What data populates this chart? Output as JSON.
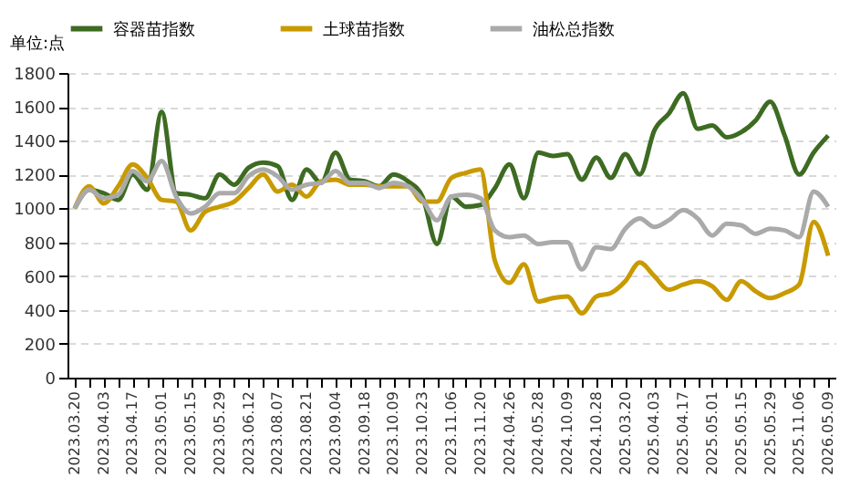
{
  "chart_data": {
    "type": "line",
    "ylabel": "单位:点",
    "categories": [
      "2023.03.20",
      null,
      "2023.04.03",
      null,
      "2023.04.17",
      null,
      "2023.05.01",
      null,
      "2023.05.15",
      null,
      "2023.05.29",
      null,
      "2023.06.12",
      null,
      "2023.08.07",
      null,
      "2023.08.21",
      null,
      "2023.09.04",
      null,
      "2023.09.18",
      null,
      "2023.10.09",
      null,
      "2023.10.23",
      null,
      "2023.11.06",
      null,
      "2023.11.20",
      null,
      "2024.04.26",
      null,
      "2024.05.28",
      null,
      "2024.10.09",
      null,
      "2024.10.28",
      null,
      "2025.03.20",
      null,
      "2025.04.03",
      null,
      "2025.04.17",
      null,
      "2025.05.01",
      null,
      "2025.05.15",
      null,
      "2025.05.29",
      null,
      "2025.11.06",
      null,
      "2026.05.09"
    ],
    "series": [
      {
        "name": "容器苗指数",
        "color": "#3d6b22",
        "values": [
          1000,
          1110,
          1090,
          1050,
          1200,
          1110,
          1570,
          1090,
          1080,
          1060,
          1200,
          1140,
          1240,
          1270,
          1250,
          1050,
          1230,
          1150,
          1330,
          1170,
          1160,
          1130,
          1200,
          1160,
          1070,
          790,
          1070,
          1010,
          1020,
          1120,
          1260,
          1060,
          1330,
          1310,
          1320,
          1170,
          1300,
          1180,
          1320,
          1200,
          1460,
          1560,
          1680,
          1470,
          1490,
          1420,
          1450,
          1520,
          1630,
          1430,
          1200,
          1330,
          1430
        ]
      },
      {
        "name": "土球苗指数",
        "color": "#c99a00",
        "values": [
          1000,
          1130,
          1030,
          1130,
          1260,
          1180,
          1050,
          1040,
          870,
          980,
          1010,
          1040,
          1120,
          1200,
          1100,
          1140,
          1070,
          1160,
          1170,
          1140,
          1140,
          1130,
          1130,
          1130,
          1040,
          1040,
          1180,
          1210,
          1230,
          690,
          560,
          670,
          450,
          470,
          480,
          380,
          480,
          500,
          570,
          680,
          600,
          520,
          550,
          570,
          540,
          460,
          570,
          510,
          470,
          500,
          550,
          920,
          720
        ]
      },
      {
        "name": "油松总指数",
        "color": "#aaaaaa",
        "values": [
          1000,
          1110,
          1060,
          1080,
          1220,
          1160,
          1280,
          1070,
          970,
          1010,
          1090,
          1090,
          1190,
          1230,
          1190,
          1110,
          1140,
          1150,
          1220,
          1150,
          1150,
          1120,
          1150,
          1130,
          1050,
          930,
          1070,
          1080,
          1060,
          870,
          830,
          840,
          790,
          800,
          800,
          640,
          770,
          760,
          880,
          940,
          890,
          930,
          990,
          940,
          840,
          910,
          900,
          850,
          880,
          870,
          830,
          1100,
          1010
        ]
      }
    ],
    "ylim": [
      0,
      1800
    ],
    "yticks": [
      0,
      200,
      400,
      600,
      800,
      1000,
      1200,
      1400,
      1600,
      1800
    ],
    "grid": "y",
    "legend": "top",
    "marker": "none",
    "line_style": "solid"
  }
}
